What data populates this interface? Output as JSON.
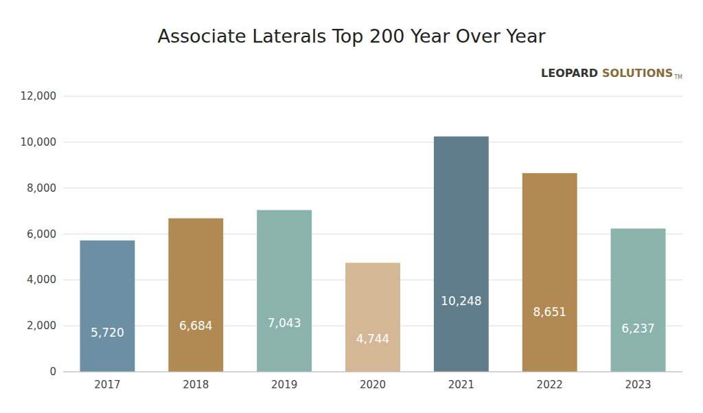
{
  "chart_data": {
    "type": "bar",
    "title": "Associate Laterals Top 200 Year Over Year",
    "annotations": [
      "LEOPARD",
      "SOLUTIONS",
      "TM"
    ],
    "categories": [
      "2017",
      "2018",
      "2019",
      "2020",
      "2021",
      "2022",
      "2023"
    ],
    "values": [
      5720,
      6684,
      7043,
      4744,
      10248,
      8651,
      6237
    ],
    "value_labels": [
      "5,720",
      "6,684",
      "7,043",
      "4,744",
      "10,248",
      "8,651",
      "6,237"
    ],
    "data_labels": true,
    "colors": [
      "#6d8fa3",
      "#b08a52",
      "#8ab3ac",
      "#d4b896",
      "#607d8b",
      "#b08a52",
      "#8ab3ac"
    ],
    "ylim": [
      0,
      12000
    ],
    "yticks": [
      0,
      {
        "value": 2000,
        "label": "2,000"
      },
      {
        "value": 4000,
        "label": "4,000"
      },
      {
        "value": 6000,
        "label": "6,000"
      },
      {
        "value": 8000,
        "label": "8,000"
      },
      {
        "value": 10000,
        "label": "10,000"
      },
      {
        "value": 12000,
        "label": "12,000"
      }
    ],
    "grid": true
  }
}
